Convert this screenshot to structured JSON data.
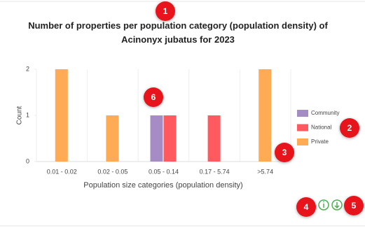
{
  "chart_data": {
    "type": "bar",
    "title": "Number of properties per population category (population density) of Acinonyx jubatus for 2023",
    "categories": [
      "0.01 - 0.02",
      "0.02 - 0.05",
      "0.05 - 0.14",
      "0.17 - 5.74",
      ">5.74"
    ],
    "series": [
      {
        "name": "Community",
        "color": "#a58cc4",
        "values": [
          0,
          0,
          1,
          0,
          0
        ]
      },
      {
        "name": "National",
        "color": "#ff5a5f",
        "values": [
          0,
          0,
          1,
          1,
          0
        ]
      },
      {
        "name": "Private",
        "color": "#ffaa55",
        "values": [
          2,
          1,
          0,
          0,
          2
        ]
      }
    ],
    "ylim": [
      0,
      2
    ],
    "yticks": [
      0,
      1,
      2
    ],
    "ylabel": "Count",
    "xlabel": "Population size categories (population density)",
    "legend": "right"
  },
  "annotations": [
    "1",
    "2",
    "3",
    "4",
    "5",
    "6"
  ]
}
